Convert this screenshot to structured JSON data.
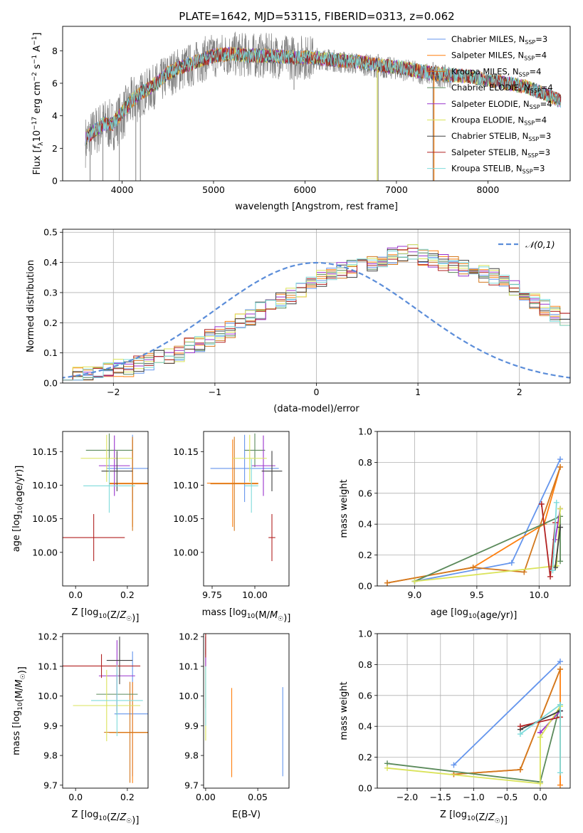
{
  "figure": {
    "title": "PLATE=1642, MJD=53115, FIBERID=0313, z=0.062"
  },
  "series_names": [
    "Chabrier MILES, N_SSP=3",
    "Salpeter MILES, N_SSP=4",
    "Kroupa MILES, N_SSP=4",
    "Chabrier ELODIE, N_SSP=4",
    "Salpeter ELODIE, N_SSP=4",
    "Kroupa ELODIE, N_SSP=4",
    "Chabrier STELIB, N_SSP=3",
    "Salpeter STELIB, N_SSP=3",
    "Kroupa STELIB, N_SSP=3"
  ],
  "colors": [
    "#6495ED",
    "#FF7F0E",
    "#D2781E",
    "#5B8A5B",
    "#9932CC",
    "#DAE35A",
    "#404040",
    "#B22222",
    "#7FDBDB"
  ],
  "chart_data": [
    {
      "id": "spectrum",
      "type": "line",
      "xlabel": "wavelength [Angstrom, rest frame]",
      "ylabel": "Flux [f_λ10^-17 erg cm^-2 s^-1 A^-1]",
      "xlim": [
        3350,
        8900
      ],
      "ylim": [
        0,
        9.5
      ],
      "xticks": [
        4000,
        5000,
        6000,
        7000,
        8000
      ],
      "yticks": [
        0,
        2,
        4,
        6,
        8
      ],
      "legend_position": "top-right",
      "data_color": "#808080",
      "data_points": [
        [
          3600,
          2.4
        ],
        [
          3700,
          3.0
        ],
        [
          3800,
          3.5
        ],
        [
          3900,
          3.4
        ],
        [
          4000,
          4.0
        ],
        [
          4100,
          4.8
        ],
        [
          4200,
          5.3
        ],
        [
          4300,
          5.6
        ],
        [
          4400,
          6.0
        ],
        [
          4500,
          6.5
        ],
        [
          4600,
          6.8
        ],
        [
          4700,
          7.0
        ],
        [
          4800,
          7.2
        ],
        [
          4900,
          7.5
        ],
        [
          5000,
          7.7
        ],
        [
          5200,
          7.8
        ],
        [
          5400,
          7.7
        ],
        [
          5600,
          7.7
        ],
        [
          5800,
          7.6
        ],
        [
          6000,
          7.6
        ],
        [
          6200,
          7.5
        ],
        [
          6400,
          7.3
        ],
        [
          6600,
          7.2
        ],
        [
          6800,
          7.0
        ],
        [
          7000,
          6.9
        ],
        [
          7200,
          6.7
        ],
        [
          7400,
          6.5
        ],
        [
          7600,
          6.4
        ],
        [
          7800,
          6.4
        ],
        [
          8000,
          6.2
        ],
        [
          8200,
          6.0
        ],
        [
          8400,
          5.8
        ],
        [
          8600,
          5.4
        ],
        [
          8800,
          5.0
        ]
      ],
      "model_points": [
        [
          3600,
          2.6
        ],
        [
          3700,
          3.1
        ],
        [
          3800,
          3.5
        ],
        [
          3900,
          3.5
        ],
        [
          4000,
          4.2
        ],
        [
          4100,
          4.9
        ],
        [
          4200,
          5.4
        ],
        [
          4300,
          5.7
        ],
        [
          4400,
          6.1
        ],
        [
          4500,
          6.6
        ],
        [
          4600,
          6.9
        ],
        [
          4700,
          7.1
        ],
        [
          4800,
          7.3
        ],
        [
          4900,
          7.5
        ],
        [
          5000,
          7.7
        ],
        [
          5200,
          7.8
        ],
        [
          5400,
          7.7
        ],
        [
          5600,
          7.7
        ],
        [
          5800,
          7.6
        ],
        [
          6000,
          7.6
        ],
        [
          6200,
          7.5
        ],
        [
          6400,
          7.4
        ],
        [
          6600,
          7.3
        ],
        [
          6800,
          7.1
        ],
        [
          7000,
          7.0
        ],
        [
          7200,
          6.8
        ],
        [
          7400,
          6.6
        ],
        [
          7600,
          6.5
        ],
        [
          7800,
          6.4
        ],
        [
          8000,
          6.2
        ],
        [
          8200,
          6.0
        ],
        [
          8400,
          5.8
        ],
        [
          8600,
          5.4
        ],
        [
          8800,
          4.9
        ]
      ],
      "dips": [
        [
          3650,
          0
        ],
        [
          3790,
          0
        ],
        [
          3970,
          0
        ],
        [
          4150,
          0
        ],
        [
          4200,
          0
        ],
        [
          5880,
          5.8
        ],
        [
          6800,
          0
        ],
        [
          7400,
          0
        ]
      ]
    },
    {
      "id": "residuals",
      "type": "histogram",
      "xlabel": "(data-model)/error",
      "ylabel": "Normed distribution",
      "xlim": [
        -2.5,
        2.5
      ],
      "ylim": [
        0,
        0.51
      ],
      "xticks": [
        -2,
        -1,
        0,
        1,
        2
      ],
      "yticks": [
        0.0,
        0.1,
        0.2,
        0.3,
        0.4,
        0.5
      ],
      "grid": true,
      "legend_position": "top-right",
      "legend_label": "𝒩(0,1)",
      "bin_width": 0.1,
      "bin_start": -2.5,
      "base_values": [
        0.02,
        0.03,
        0.03,
        0.04,
        0.04,
        0.05,
        0.05,
        0.06,
        0.07,
        0.08,
        0.09,
        0.1,
        0.12,
        0.13,
        0.15,
        0.16,
        0.18,
        0.2,
        0.22,
        0.24,
        0.25,
        0.27,
        0.29,
        0.31,
        0.33,
        0.35,
        0.36,
        0.37,
        0.38,
        0.39,
        0.4,
        0.41,
        0.42,
        0.43,
        0.44,
        0.42,
        0.41,
        0.4,
        0.39,
        0.38,
        0.37,
        0.36,
        0.35,
        0.33,
        0.31,
        0.29,
        0.27,
        0.25,
        0.23,
        0.21,
        0.2,
        0.19,
        0.18,
        0.16,
        0.15,
        0.14,
        0.13,
        0.12,
        0.11,
        0.1,
        0.1,
        0.09,
        0.08,
        0.08,
        0.07,
        0.06,
        0.06,
        0.05,
        0.05,
        0.04,
        0.04,
        0.04,
        0.03,
        0.03,
        0.03,
        0.03
      ]
    },
    {
      "id": "age_vs_Z",
      "type": "errorbar",
      "xlabel": "Z [log10(Z/Z☉)]",
      "ylabel": "age [log10(age/yr)]",
      "xlim": [
        -0.05,
        0.28
      ],
      "ylim": [
        9.95,
        10.18
      ],
      "xticks": [
        0.0,
        0.2
      ],
      "yticks": [
        10.0,
        10.05,
        10.1,
        10.15
      ],
      "points": [
        {
          "x": 0.22,
          "y": 10.125,
          "xerr": 0.1,
          "yerr": 0.05
        },
        {
          "x": 0.22,
          "y": 10.103,
          "xerr": 0.09,
          "yerr": 0.065
        },
        {
          "x": 0.22,
          "y": 10.102,
          "xerr": 0.09,
          "yerr": 0.07
        },
        {
          "x": 0.13,
          "y": 10.152,
          "xerr": 0.09,
          "yerr": 0.025
        },
        {
          "x": 0.15,
          "y": 10.129,
          "xerr": 0.06,
          "yerr": 0.045
        },
        {
          "x": 0.12,
          "y": 10.14,
          "xerr": 0.1,
          "yerr": 0.035
        },
        {
          "x": 0.16,
          "y": 10.121,
          "xerr": 0.06,
          "yerr": 0.03
        },
        {
          "x": 0.07,
          "y": 10.022,
          "xerr": 0.12,
          "yerr": 0.035
        },
        {
          "x": 0.13,
          "y": 10.099,
          "xerr": 0.1,
          "yerr": 0.04
        }
      ]
    },
    {
      "id": "age_vs_mass",
      "type": "errorbar",
      "xlabel": "mass [log10(M/M☉)]",
      "ylabel": "",
      "xlim": [
        9.7,
        10.2
      ],
      "ylim": [
        9.95,
        10.18
      ],
      "xticks": [
        9.75,
        10.0
      ],
      "yticks": [
        10.0,
        10.05,
        10.1,
        10.15
      ],
      "points": [
        {
          "x": 9.94,
          "y": 10.125,
          "xerr": 0.2,
          "yerr": 0.05
        },
        {
          "x": 9.87,
          "y": 10.103,
          "xerr": 0.15,
          "yerr": 0.065
        },
        {
          "x": 9.88,
          "y": 10.102,
          "xerr": 0.14,
          "yerr": 0.07
        },
        {
          "x": 10.0,
          "y": 10.152,
          "xerr": 0.06,
          "yerr": 0.025
        },
        {
          "x": 10.05,
          "y": 10.129,
          "xerr": 0.07,
          "yerr": 0.045
        },
        {
          "x": 9.97,
          "y": 10.14,
          "xerr": 0.1,
          "yerr": 0.035
        },
        {
          "x": 10.1,
          "y": 10.121,
          "xerr": 0.06,
          "yerr": 0.03
        },
        {
          "x": 10.1,
          "y": 10.022,
          "xerr": 0.02,
          "yerr": 0.035
        },
        {
          "x": 9.98,
          "y": 10.099,
          "xerr": 0.04,
          "yerr": 0.04
        }
      ]
    },
    {
      "id": "weight_vs_age",
      "type": "line",
      "xlabel": "age [log10(age/yr)]",
      "ylabel": "mass weight",
      "xlim": [
        8.7,
        10.25
      ],
      "ylim": [
        0,
        1.0
      ],
      "xticks": [
        9.0,
        9.5,
        10.0
      ],
      "yticks": [
        0.0,
        0.2,
        0.4,
        0.6,
        0.8,
        1.0
      ],
      "grid": true,
      "series": [
        {
          "x": [
            9.0,
            9.78,
            10.17
          ],
          "y": [
            0.03,
            0.15,
            0.82
          ]
        },
        {
          "x": [
            8.78,
            9.47,
            10.04,
            10.17
          ],
          "y": [
            0.02,
            0.12,
            0.4,
            0.77
          ]
        },
        {
          "x": [
            8.78,
            9.47,
            9.88,
            10.17
          ],
          "y": [
            0.02,
            0.12,
            0.09,
            0.77
          ]
        },
        {
          "x": [
            9.0,
            10.17,
            10.17
          ],
          "y": [
            0.03,
            0.45,
            0.16
          ]
        },
        {
          "x": [
            10.13,
            10.17
          ],
          "y": [
            0.3,
            0.5
          ]
        },
        {
          "x": [
            9.0,
            10.14,
            10.17
          ],
          "y": [
            0.03,
            0.13,
            0.5
          ]
        },
        {
          "x": [
            10.13,
            10.17
          ],
          "y": [
            0.12,
            0.38
          ]
        },
        {
          "x": [
            10.02,
            10.09,
            10.13
          ],
          "y": [
            0.53,
            0.06,
            0.41
          ]
        },
        {
          "x": [
            10.11,
            10.14
          ],
          "y": [
            0.1,
            0.54
          ]
        }
      ]
    },
    {
      "id": "mass_vs_Z",
      "type": "errorbar",
      "xlabel": "Z [log10(Z/Z☉)]",
      "ylabel": "mass [log10(M/M☉)]",
      "xlim": [
        -0.05,
        0.28
      ],
      "ylim": [
        9.69,
        10.21
      ],
      "xticks": [
        0.0,
        0.2
      ],
      "yticks": [
        9.7,
        9.8,
        9.9,
        10.0,
        10.1,
        10.2
      ],
      "points": [
        {
          "x": 0.22,
          "y": 9.94,
          "xerr": 0.07,
          "yerr": 0.21
        },
        {
          "x": 0.22,
          "y": 9.877,
          "xerr": 0.09,
          "yerr": 0.17
        },
        {
          "x": 0.21,
          "y": 9.878,
          "xerr": 0.1,
          "yerr": 0.17
        },
        {
          "x": 0.16,
          "y": 10.006,
          "xerr": 0.08,
          "yerr": 0.07
        },
        {
          "x": 0.16,
          "y": 10.068,
          "xerr": 0.07,
          "yerr": 0.12
        },
        {
          "x": 0.12,
          "y": 9.968,
          "xerr": 0.13,
          "yerr": 0.12
        },
        {
          "x": 0.17,
          "y": 10.12,
          "xerr": 0.05,
          "yerr": 0.08
        },
        {
          "x": 0.1,
          "y": 10.101,
          "xerr": 0.15,
          "yerr": 0.04
        },
        {
          "x": 0.16,
          "y": 9.985,
          "xerr": 0.1,
          "yerr": 0.12
        }
      ]
    },
    {
      "id": "mass_vs_EBV",
      "type": "errorbar",
      "xlabel": "E(B-V)",
      "ylabel": "",
      "xlim": [
        -0.002,
        0.08
      ],
      "ylim": [
        9.69,
        10.21
      ],
      "xticks": [
        0.0,
        0.05
      ],
      "yticks": [
        9.7,
        9.8,
        9.9,
        10.0,
        10.1,
        10.2
      ],
      "points": [
        {
          "x": 0.074,
          "y": 9.88,
          "xerr": 0,
          "yerr": 0.15
        },
        {
          "x": 0.025,
          "y": 9.877,
          "xerr": 0,
          "yerr": 0.15
        },
        {
          "x": 0.0,
          "y": 10.06,
          "xerr": 0,
          "yerr": 0.1
        },
        {
          "x": 0.0,
          "y": 10.17,
          "xerr": 0,
          "yerr": 0.04
        },
        {
          "x": 0.0,
          "y": 10.15,
          "xerr": 0,
          "yerr": 0.05
        },
        {
          "x": 0.0,
          "y": 9.97,
          "xerr": 0,
          "yerr": 0.12
        },
        {
          "x": 0.0,
          "y": 10.17,
          "xerr": 0,
          "yerr": 0.03
        },
        {
          "x": 0.0,
          "y": 10.17,
          "xerr": 0,
          "yerr": 0.04
        },
        {
          "x": 0.0,
          "y": 10.0,
          "xerr": 0,
          "yerr": 0.1
        }
      ]
    },
    {
      "id": "weight_vs_Z",
      "type": "line",
      "xlabel": "Z [log10(Z/Z☉)]",
      "ylabel": "mass weight",
      "xlim": [
        -2.45,
        0.45
      ],
      "ylim": [
        0,
        1.0
      ],
      "xticks": [
        -2.0,
        -1.5,
        -1.0,
        -0.5,
        0.0
      ],
      "yticks": [
        0.0,
        0.2,
        0.4,
        0.6,
        0.8,
        1.0
      ],
      "grid": true,
      "series": [
        {
          "x": [
            -1.3,
            0.3
          ],
          "y": [
            0.15,
            0.82
          ]
        },
        {
          "x": [
            -1.3,
            -0.3,
            0.3,
            0.3
          ],
          "y": [
            0.09,
            0.12,
            0.77,
            0.02
          ]
        },
        {
          "x": [
            -1.3,
            -0.3,
            0.3
          ],
          "y": [
            0.09,
            0.12,
            0.77
          ]
        },
        {
          "x": [
            -2.3,
            0.0,
            0.3
          ],
          "y": [
            0.16,
            0.04,
            0.54
          ]
        },
        {
          "x": [
            0.0,
            0.3
          ],
          "y": [
            0.36,
            0.5
          ]
        },
        {
          "x": [
            -2.3,
            0.0,
            0.0,
            0.3
          ],
          "y": [
            0.13,
            0.03,
            0.33,
            0.53
          ]
        },
        {
          "x": [
            -0.3,
            0.3
          ],
          "y": [
            0.38,
            0.5
          ]
        },
        {
          "x": [
            -0.3,
            0.3
          ],
          "y": [
            0.4,
            0.46
          ]
        },
        {
          "x": [
            -0.3,
            0.3,
            0.3
          ],
          "y": [
            0.35,
            0.54,
            0.1
          ]
        }
      ]
    }
  ]
}
